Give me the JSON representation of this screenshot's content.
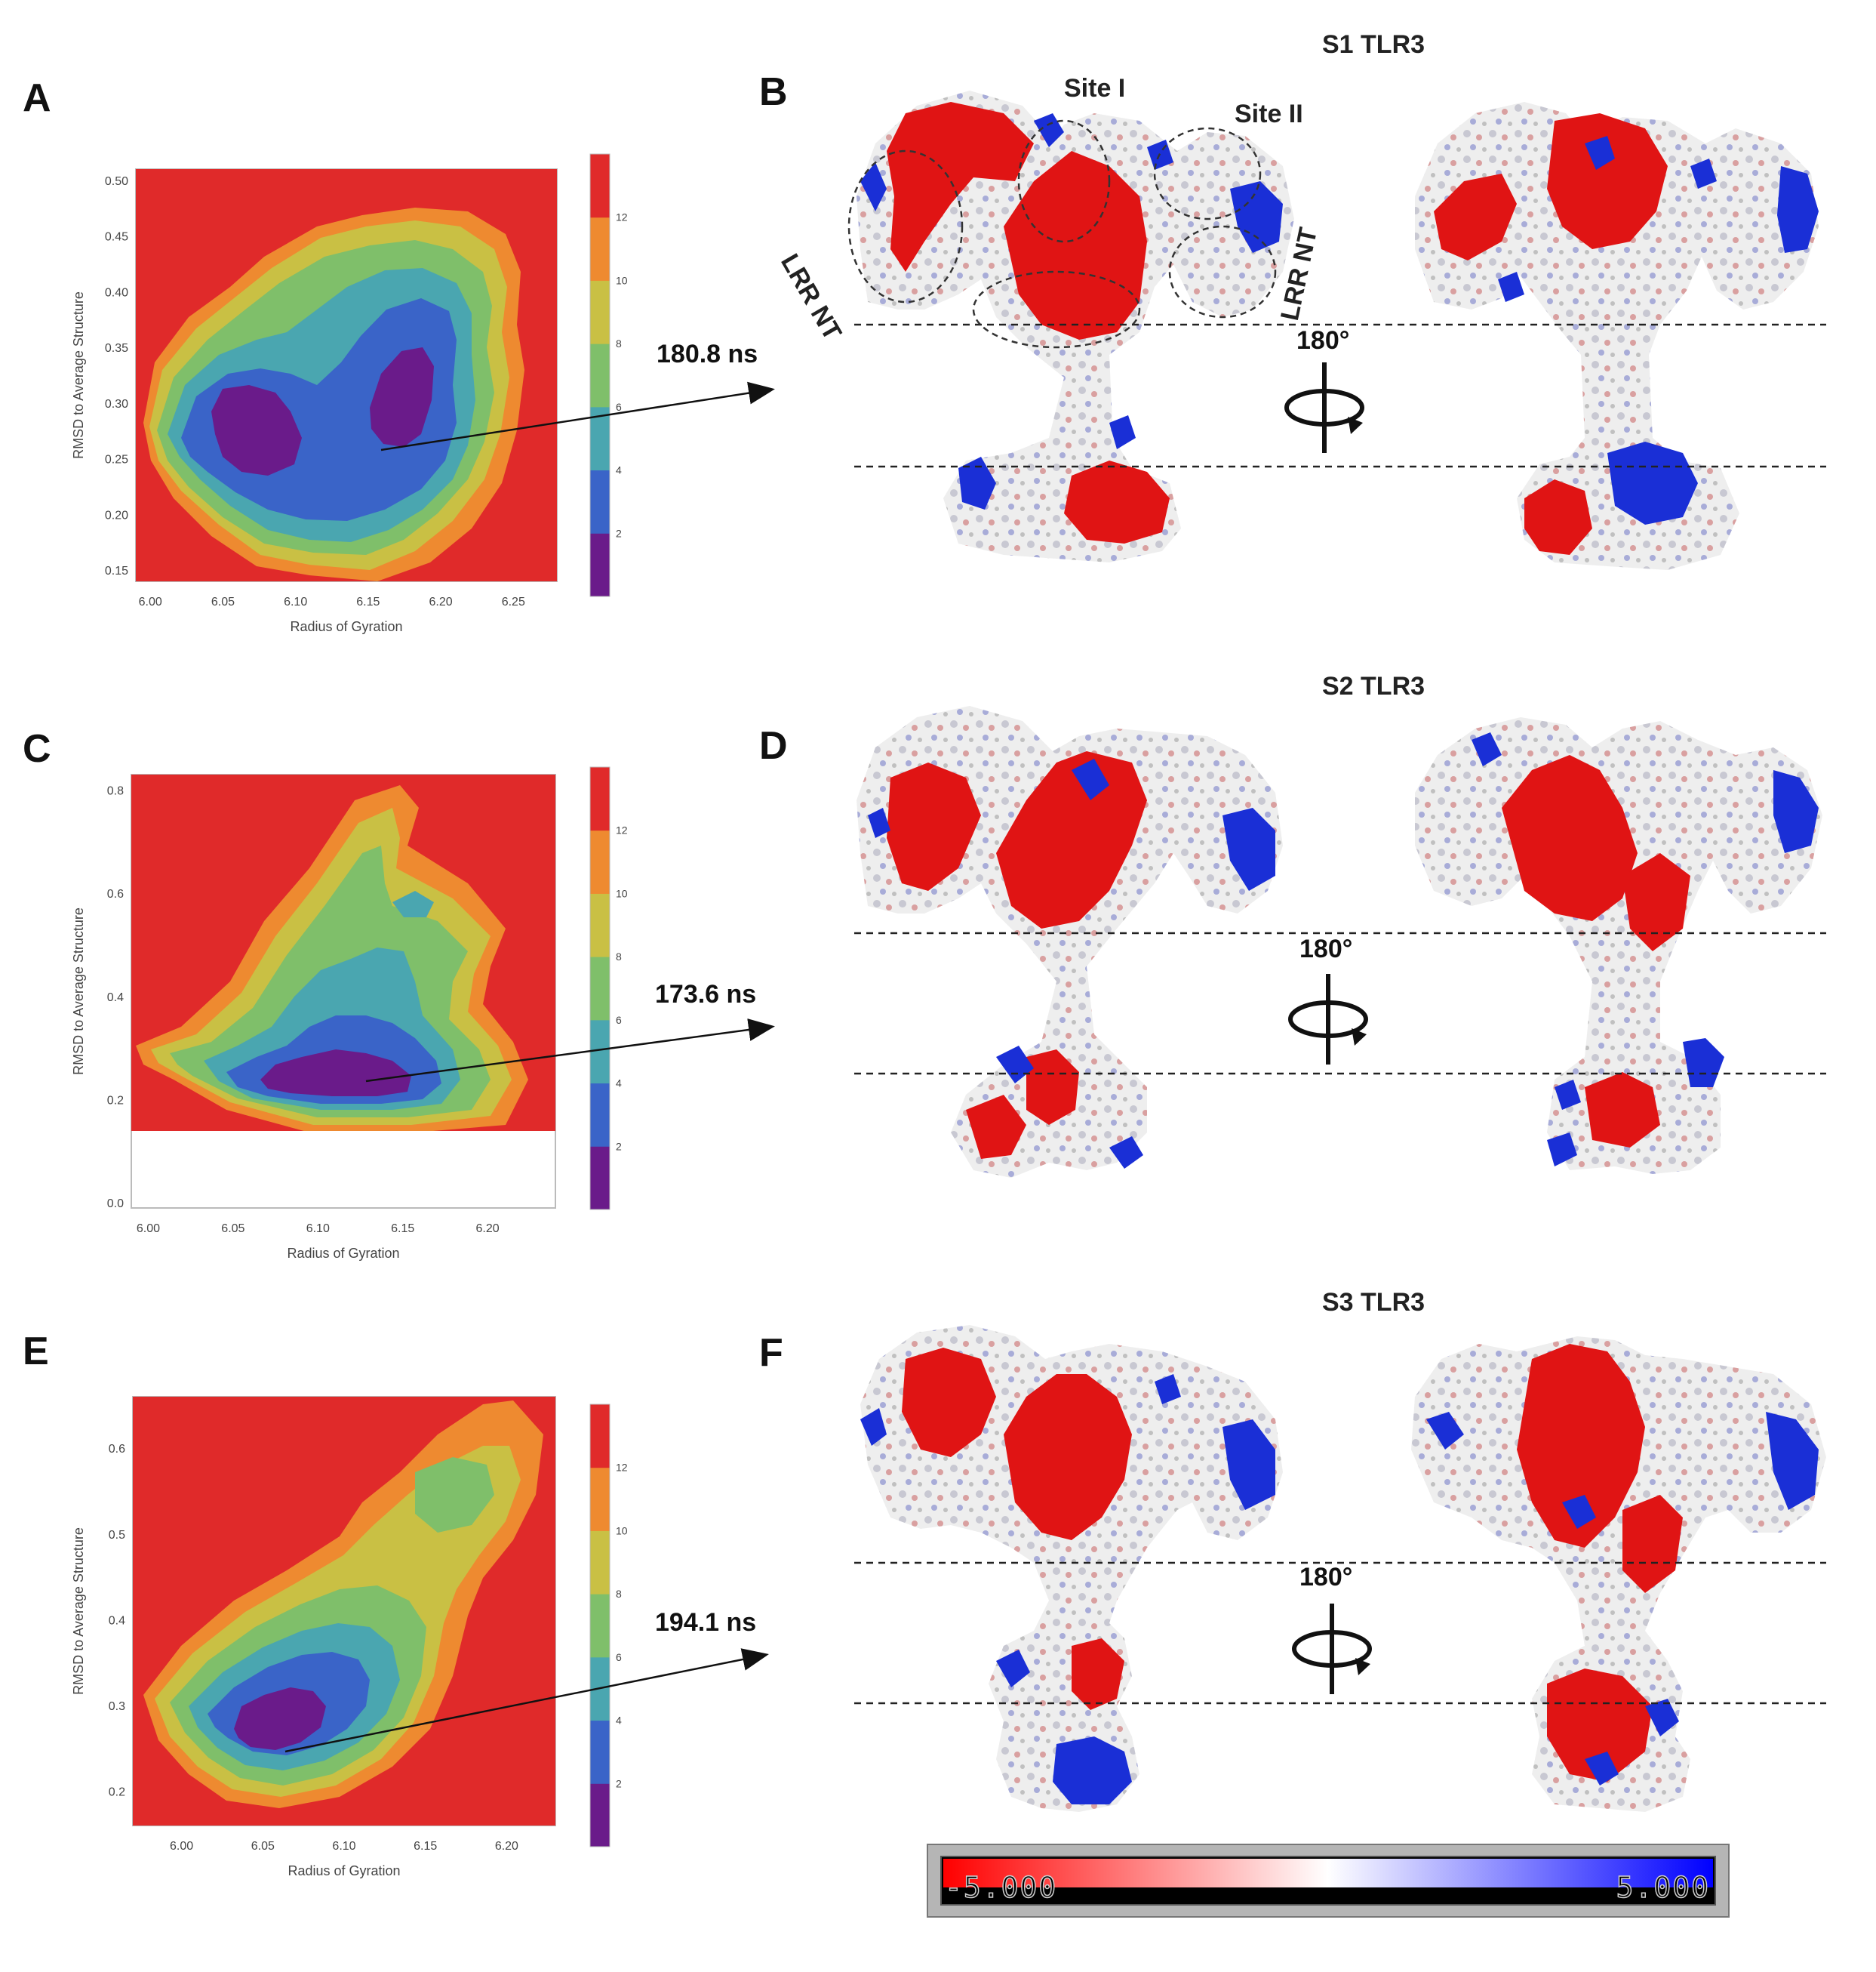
{
  "panels": {
    "A": "A",
    "B": "B",
    "C": "C",
    "D": "D",
    "E": "E",
    "F": "F"
  },
  "chart_data": [
    {
      "type": "heatmap",
      "panel": "A",
      "title": "",
      "xlabel": "Radius of Gyration",
      "ylabel": "RMSD to Average Structure",
      "xlim": [
        5.99,
        6.28
      ],
      "ylim": [
        0.14,
        0.51
      ],
      "xticks": [
        "6.00",
        "6.05",
        "6.10",
        "6.15",
        "6.20",
        "6.25"
      ],
      "xtick_values": [
        6.0,
        6.05,
        6.1,
        6.15,
        6.2,
        6.25
      ],
      "yticks": [
        "0.15",
        "0.20",
        "0.25",
        "0.30",
        "0.35",
        "0.40",
        "0.45",
        "0.50"
      ],
      "ytick_values": [
        0.15,
        0.2,
        0.25,
        0.3,
        0.35,
        0.4,
        0.45,
        0.5
      ],
      "colorbar_ticks": [
        "2",
        "4",
        "6",
        "8",
        "10",
        "12"
      ],
      "colorbar_values": [
        2,
        4,
        6,
        8,
        10,
        12
      ],
      "colorbar_range": [
        0,
        14
      ],
      "minima": [
        [
          6.07,
          0.26
        ],
        [
          6.17,
          0.27
        ]
      ],
      "arrow_point": [
        6.16,
        0.26
      ],
      "annotation": "180.8 ns"
    },
    {
      "type": "heatmap",
      "panel": "C",
      "title": "",
      "xlabel": "Radius of Gyration",
      "ylabel": "RMSD to Average Structure",
      "xlim": [
        5.99,
        6.24
      ],
      "ylim": [
        -0.01,
        0.83
      ],
      "data_ylim": [
        0.14,
        0.82
      ],
      "xticks": [
        "6.00",
        "6.05",
        "6.10",
        "6.15",
        "6.20"
      ],
      "xtick_values": [
        6.0,
        6.05,
        6.1,
        6.15,
        6.2
      ],
      "yticks": [
        "0.0",
        "0.2",
        "0.4",
        "0.6",
        "0.8"
      ],
      "ytick_values": [
        0.0,
        0.2,
        0.4,
        0.6,
        0.8
      ],
      "colorbar_ticks": [
        "2",
        "4",
        "6",
        "8",
        "10",
        "12"
      ],
      "colorbar_values": [
        2,
        4,
        6,
        8,
        10,
        12
      ],
      "colorbar_range": [
        0,
        14
      ],
      "minima": [
        [
          6.12,
          0.23
        ]
      ],
      "arrow_point": [
        6.13,
        0.23
      ],
      "annotation": "173.6 ns"
    },
    {
      "type": "heatmap",
      "panel": "E",
      "title": "",
      "xlabel": "Radius of Gyration",
      "ylabel": "RMSD to Average Structure",
      "xlim": [
        5.97,
        6.23
      ],
      "ylim": [
        0.16,
        0.66
      ],
      "xticks": [
        "6.00",
        "6.05",
        "6.10",
        "6.15",
        "6.20"
      ],
      "xtick_values": [
        6.0,
        6.05,
        6.1,
        6.15,
        6.2
      ],
      "yticks": [
        "0.2",
        "0.3",
        "0.4",
        "0.5",
        "0.6"
      ],
      "ytick_values": [
        0.2,
        0.3,
        0.4,
        0.5,
        0.6
      ],
      "colorbar_ticks": [
        "2",
        "4",
        "6",
        "8",
        "10",
        "12"
      ],
      "colorbar_values": [
        2,
        4,
        6,
        8,
        10,
        12
      ],
      "colorbar_range": [
        0,
        14
      ],
      "minima": [
        [
          6.07,
          0.27
        ]
      ],
      "arrow_point": [
        6.06,
        0.26
      ],
      "annotation": "194.1 ns"
    }
  ],
  "colors": {
    "levels": [
      "#6a1b8a",
      "#3a64c8",
      "#4aa6b0",
      "#7fbf6a",
      "#c9c044",
      "#ee8a30",
      "#e02a2a"
    ],
    "positive": "#1a2fd6",
    "negative": "#e01414",
    "neutral": "#f2f2f2"
  },
  "structures": [
    {
      "panel": "B",
      "title": "S1 TLR3",
      "rotation": "180°",
      "labels": [
        "Site I",
        "Site II",
        "LRR NT",
        "LRR NT"
      ]
    },
    {
      "panel": "D",
      "title": "S2 TLR3",
      "rotation": "180°"
    },
    {
      "panel": "F",
      "title": "S3 TLR3",
      "rotation": "180°"
    }
  ],
  "legend": {
    "min_label": "-5.000",
    "max_label": "5.000"
  }
}
